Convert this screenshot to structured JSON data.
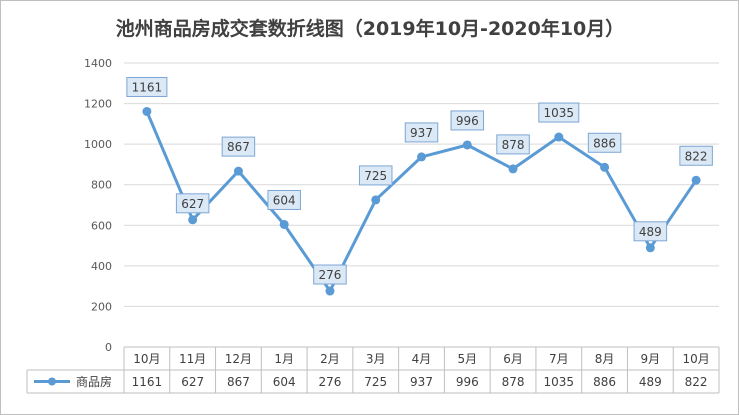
{
  "colors": {
    "series": "#5b9bd5",
    "label_fill": "#dbe8f5",
    "label_border": "#7ea6d4",
    "grid": "#d9d9d9",
    "table_border": "#bfbfbf"
  },
  "chart_data": {
    "type": "line",
    "title": "池州商品房成交套数折线图（2019年10月-2020年10月）",
    "categories": [
      "10月",
      "11月",
      "12月",
      "1月",
      "2月",
      "3月",
      "4月",
      "5月",
      "6月",
      "7月",
      "8月",
      "9月",
      "10月"
    ],
    "series": [
      {
        "name": "商品房",
        "values": [
          1161,
          627,
          867,
          604,
          276,
          725,
          937,
          996,
          878,
          1035,
          886,
          489,
          822
        ]
      }
    ],
    "ylim": [
      0,
      1400
    ],
    "yticks": [
      0,
      200,
      400,
      600,
      800,
      1000,
      1200,
      1400
    ],
    "grid": true,
    "data_labels": true,
    "data_table": true,
    "legend": "data-table"
  }
}
